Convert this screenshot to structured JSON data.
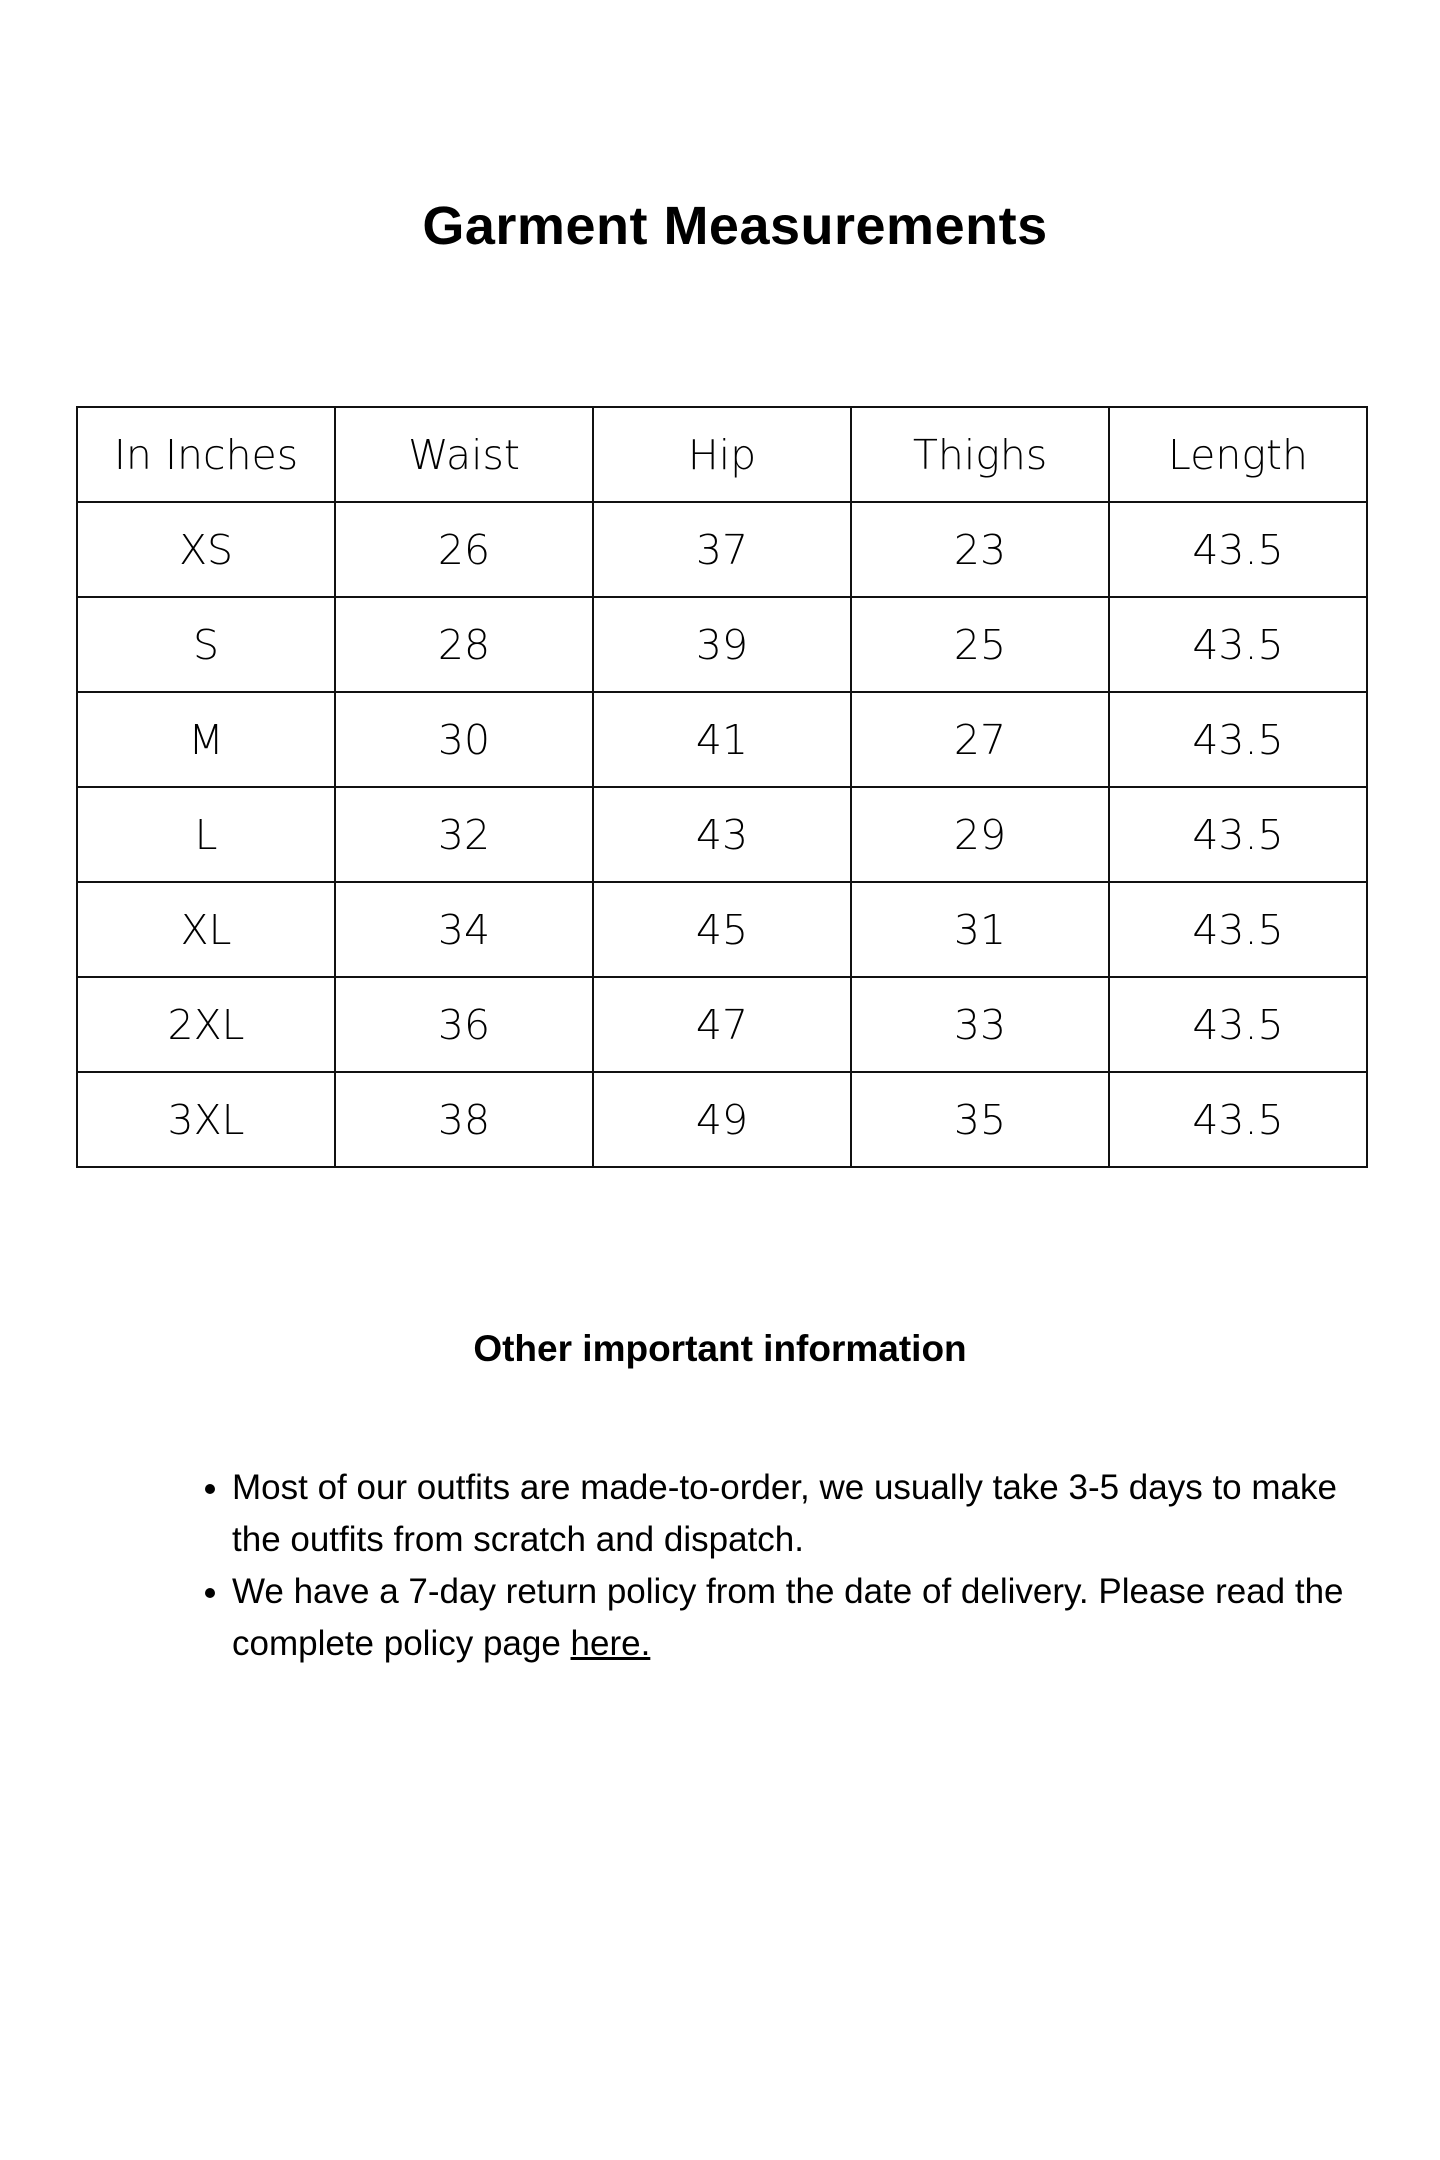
{
  "title": "Garment Measurements",
  "table": {
    "headers": [
      "In Inches",
      "Waist",
      "Hip",
      "Thighs",
      "Length"
    ],
    "rows": [
      [
        "XS",
        "26",
        "37",
        "23",
        "43.5"
      ],
      [
        "S",
        "28",
        "39",
        "25",
        "43.5"
      ],
      [
        "M",
        "30",
        "41",
        "27",
        "43.5"
      ],
      [
        "L",
        "32",
        "43",
        "29",
        "43.5"
      ],
      [
        "XL",
        "34",
        "45",
        "31",
        "43.5"
      ],
      [
        "2XL",
        "36",
        "47",
        "33",
        "43.5"
      ],
      [
        "3XL",
        "38",
        "49",
        "35",
        "43.5"
      ]
    ]
  },
  "info": {
    "heading": "Other important information",
    "bullet1": "Most of our outfits are made-to-order, we usually take 3-5 days to make the outfits from scratch and dispatch.",
    "bullet2_text": " We have a 7-day return policy from the date of delivery. Please read the complete policy page ",
    "bullet2_link": "here."
  }
}
